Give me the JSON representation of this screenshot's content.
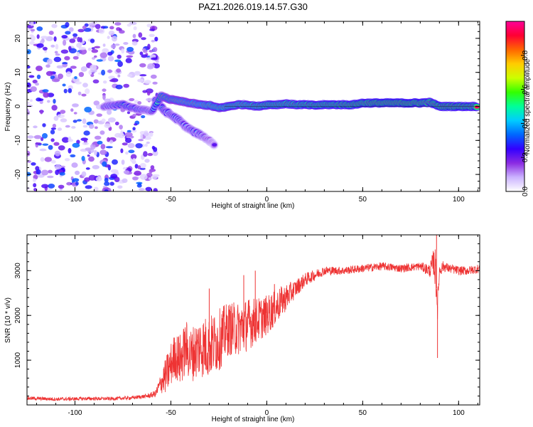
{
  "figure": {
    "title": "PAZ1.2026.019.14.57.G30"
  },
  "chart_data": [
    {
      "type": "heatmap",
      "name": "spectrogram",
      "xlabel": "Height of straight line (km)",
      "ylabel": "Frequency (Hz)",
      "xlim": [
        -125,
        111
      ],
      "ylim": [
        -25,
        25
      ],
      "xticks": [
        -100,
        -50,
        0,
        50,
        100
      ],
      "yticks": [
        -20,
        -10,
        0,
        10,
        20
      ],
      "xtick_labels": [
        "-100",
        "-50",
        "0",
        "50",
        "100"
      ],
      "ytick_labels": [
        "-20",
        "-10",
        "0",
        "10",
        "20"
      ],
      "colorbar": {
        "label": "Normalized spectral amplitude",
        "range": [
          0,
          1
        ],
        "ticks": [
          0.0,
          0.2,
          0.4,
          0.6,
          0.8
        ],
        "tick_labels": [
          "0.0",
          "0.2",
          "0.4",
          "0.6",
          "0.8"
        ],
        "stops": [
          "#ffffff",
          "#cbb3ff",
          "#8b2be2",
          "#3300ff",
          "#0066ff",
          "#00ccff",
          "#00ff99",
          "#33ff00",
          "#ccff00",
          "#ffcc00",
          "#ff6600",
          "#ff0033",
          "#ff0099"
        ]
      },
      "ridge": [
        {
          "x": -85,
          "f": 0.0,
          "a": 0.35
        },
        {
          "x": -80,
          "f": 0.3,
          "a": 0.4
        },
        {
          "x": -75,
          "f": 0.5,
          "a": 0.5
        },
        {
          "x": -70,
          "f": -0.5,
          "a": 0.45
        },
        {
          "x": -65,
          "f": -1.0,
          "a": 0.4
        },
        {
          "x": -60,
          "f": -1.5,
          "a": 0.35
        },
        {
          "x": -55,
          "f": 3.0,
          "a": 0.6
        },
        {
          "x": -50,
          "f": 2.0,
          "a": 0.65
        },
        {
          "x": -45,
          "f": 1.5,
          "a": 0.7
        },
        {
          "x": -40,
          "f": 1.0,
          "a": 0.7
        },
        {
          "x": -35,
          "f": 0.5,
          "a": 0.75
        },
        {
          "x": -30,
          "f": 0.3,
          "a": 0.8
        },
        {
          "x": -25,
          "f": -0.5,
          "a": 0.8
        },
        {
          "x": -20,
          "f": 0.0,
          "a": 0.85
        },
        {
          "x": -15,
          "f": 0.5,
          "a": 0.85
        },
        {
          "x": -10,
          "f": 0.5,
          "a": 0.85
        },
        {
          "x": -5,
          "f": 0.0,
          "a": 0.88
        },
        {
          "x": 0,
          "f": 0.5,
          "a": 0.9
        },
        {
          "x": 5,
          "f": 0.5,
          "a": 0.9
        },
        {
          "x": 10,
          "f": 0.8,
          "a": 0.9
        },
        {
          "x": 15,
          "f": 0.5,
          "a": 0.9
        },
        {
          "x": 20,
          "f": 0.5,
          "a": 0.92
        },
        {
          "x": 25,
          "f": 0.3,
          "a": 0.92
        },
        {
          "x": 30,
          "f": 0.5,
          "a": 0.93
        },
        {
          "x": 35,
          "f": 0.5,
          "a": 0.93
        },
        {
          "x": 40,
          "f": 0.5,
          "a": 0.94
        },
        {
          "x": 45,
          "f": 0.5,
          "a": 0.95
        },
        {
          "x": 50,
          "f": 1.0,
          "a": 0.96
        },
        {
          "x": 55,
          "f": 1.0,
          "a": 0.97
        },
        {
          "x": 60,
          "f": 1.0,
          "a": 0.98
        },
        {
          "x": 65,
          "f": 1.0,
          "a": 0.98
        },
        {
          "x": 70,
          "f": 1.0,
          "a": 0.98
        },
        {
          "x": 75,
          "f": 1.0,
          "a": 0.98
        },
        {
          "x": 80,
          "f": 1.0,
          "a": 0.97
        },
        {
          "x": 85,
          "f": 1.2,
          "a": 0.95
        },
        {
          "x": 90,
          "f": 0.0,
          "a": 0.96
        },
        {
          "x": 95,
          "f": 0.0,
          "a": 0.97
        },
        {
          "x": 100,
          "f": 0.0,
          "a": 0.97
        },
        {
          "x": 105,
          "f": 0.0,
          "a": 0.96
        },
        {
          "x": 110,
          "f": 0.0,
          "a": 0.95
        }
      ],
      "branch": [
        {
          "x": -58,
          "f": 2.0,
          "a": 0.45
        },
        {
          "x": -54,
          "f": -1.0,
          "a": 0.45
        },
        {
          "x": -50,
          "f": -2.5,
          "a": 0.4
        },
        {
          "x": -46,
          "f": -4.0,
          "a": 0.4
        },
        {
          "x": -42,
          "f": -6.0,
          "a": 0.35
        },
        {
          "x": -38,
          "f": -7.5,
          "a": 0.4
        },
        {
          "x": -34,
          "f": -8.5,
          "a": 0.35
        },
        {
          "x": -30,
          "f": -10.0,
          "a": 0.3
        },
        {
          "x": -27,
          "f": -11.5,
          "a": 0.2
        }
      ],
      "noise_region": {
        "x_from": -125,
        "x_to": -57,
        "f_from": -25,
        "f_to": 25
      }
    },
    {
      "type": "line",
      "name": "snr",
      "xlabel": "Height of straight line (km)",
      "ylabel": "SNR (10 * v/v)",
      "xlim": [
        -125,
        111
      ],
      "ylim": [
        0,
        3800
      ],
      "xticks": [
        -100,
        -50,
        0,
        50,
        100
      ],
      "yticks": [
        1000,
        2000,
        3000
      ],
      "xtick_labels": [
        "-100",
        "-50",
        "0",
        "50",
        "100"
      ],
      "ytick_labels": [
        "1000",
        "2000",
        "3000"
      ],
      "color": "#ee3333",
      "series": [
        {
          "name": "SNR",
          "x": [
            -125,
            -110,
            -95,
            -80,
            -70,
            -62,
            -58,
            -55,
            -52,
            -50,
            -48,
            -45,
            -42,
            -40,
            -35,
            -30,
            -25,
            -20,
            -15,
            -10,
            -5,
            0,
            5,
            10,
            15,
            20,
            25,
            30,
            40,
            50,
            60,
            70,
            80,
            85,
            87,
            88,
            89,
            90,
            92,
            95,
            100,
            105,
            111
          ],
          "y": [
            150,
            130,
            140,
            140,
            160,
            200,
            250,
            500,
            700,
            900,
            1100,
            1000,
            1300,
            1100,
            1300,
            1300,
            1450,
            1700,
            1700,
            1800,
            1900,
            2000,
            2200,
            2400,
            2600,
            2800,
            2900,
            3000,
            3000,
            3050,
            3100,
            3050,
            3100,
            3000,
            3200,
            3000,
            2200,
            3000,
            3100,
            3050,
            3000,
            3000,
            3050
          ],
          "noise": [
            40,
            40,
            40,
            40,
            40,
            50,
            80,
            250,
            450,
            500,
            500,
            600,
            600,
            600,
            700,
            700,
            700,
            600,
            600,
            600,
            500,
            450,
            400,
            300,
            200,
            150,
            120,
            100,
            90,
            90,
            90,
            90,
            90,
            150,
            300,
            500,
            300,
            150,
            120,
            100,
            100,
            100,
            100
          ]
        }
      ],
      "spikes": [
        {
          "x": -6,
          "y": 3000
        },
        {
          "x": -12,
          "y": 2900
        },
        {
          "x": -30,
          "y": 2600
        },
        {
          "x": 4,
          "y": 2700
        },
        {
          "x": 88.5,
          "y": 3800
        },
        {
          "x": 89,
          "y": 1050
        }
      ]
    }
  ]
}
